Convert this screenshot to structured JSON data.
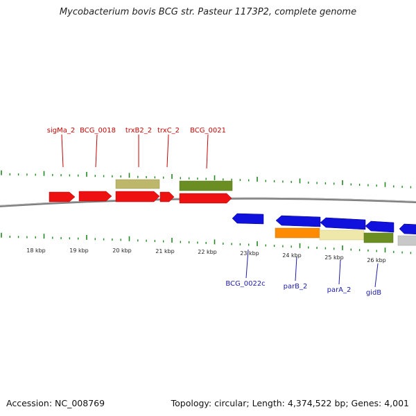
{
  "title": "Mycobacterium bovis BCG str. Pasteur 1173P2, complete genome",
  "footer": {
    "accession": "Accession: NC_008769",
    "summary": "Topology: circular; Length: 4,374,522 bp; Genes: 4,001"
  },
  "colors": {
    "forward_gene": "#ee1111",
    "reverse_gene": "#1111dd",
    "tick": "#228822",
    "backbone": "#808080",
    "feature_olive": "#6b8e23",
    "feature_khaki": "#bdb76b",
    "feature_orange": "#ff8c00",
    "feature_pale": "#eee8aa",
    "feature_grey": "#c8c8c8"
  },
  "scale_labels": [
    {
      "label": "18 kbp",
      "kbp": 18
    },
    {
      "label": "19 kbp",
      "kbp": 19
    },
    {
      "label": "20 kbp",
      "kbp": 20
    },
    {
      "label": "21 kbp",
      "kbp": 21
    },
    {
      "label": "22 kbp",
      "kbp": 22
    },
    {
      "label": "23 kbp",
      "kbp": 23
    },
    {
      "label": "24 kbp",
      "kbp": 24
    },
    {
      "label": "25 kbp",
      "kbp": 25
    },
    {
      "label": "26 kbp",
      "kbp": 26
    }
  ],
  "forward_labels": [
    {
      "label": "sigMa_2"
    },
    {
      "label": "BCG_0018"
    },
    {
      "label": "trxB2_2"
    },
    {
      "label": "trxC_2"
    },
    {
      "label": "BCG_0021"
    }
  ],
  "reverse_labels": [
    {
      "label": "BCG_0022c"
    },
    {
      "label": "parB_2"
    },
    {
      "label": "parA_2"
    },
    {
      "label": "gidB"
    }
  ]
}
